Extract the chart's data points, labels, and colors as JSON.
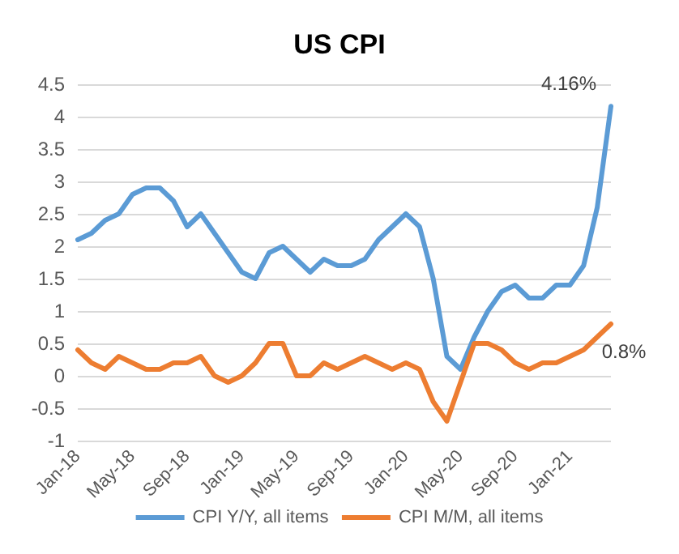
{
  "chart_data": {
    "type": "line",
    "title": "US CPI",
    "categories": [
      "Jan-18",
      null,
      null,
      null,
      "May-18",
      null,
      null,
      null,
      "Sep-18",
      null,
      null,
      null,
      "Jan-19",
      null,
      null,
      null,
      "May-19",
      null,
      null,
      null,
      "Sep-19",
      null,
      null,
      null,
      "Jan-20",
      null,
      null,
      null,
      "May-20",
      null,
      null,
      null,
      "Sep-20",
      null,
      null,
      null,
      "Jan-21",
      null,
      null,
      null
    ],
    "series": [
      {
        "name": "CPI Y/Y, all items",
        "color": "#5b9bd5",
        "values": [
          2.1,
          2.2,
          2.4,
          2.5,
          2.8,
          2.9,
          2.9,
          2.7,
          2.3,
          2.5,
          2.2,
          1.9,
          1.6,
          1.5,
          1.9,
          2.0,
          1.8,
          1.6,
          1.8,
          1.7,
          1.7,
          1.8,
          2.1,
          2.3,
          2.5,
          2.3,
          1.5,
          0.3,
          0.1,
          0.6,
          1.0,
          1.3,
          1.4,
          1.2,
          1.2,
          1.4,
          1.4,
          1.7,
          2.6,
          4.16
        ],
        "value_labels": [
          null,
          null,
          null,
          null,
          null,
          null,
          null,
          null,
          null,
          null,
          null,
          null,
          null,
          null,
          null,
          null,
          null,
          null,
          null,
          null,
          null,
          null,
          null,
          null,
          null,
          null,
          null,
          null,
          null,
          null,
          null,
          null,
          null,
          null,
          null,
          null,
          null,
          null,
          null,
          "4.16%"
        ]
      },
      {
        "name": "CPI M/M, all items",
        "color": "#ed7d31",
        "values": [
          0.4,
          0.2,
          0.1,
          0.3,
          0.2,
          0.1,
          0.1,
          0.2,
          0.2,
          0.3,
          0.0,
          -0.1,
          0.0,
          0.2,
          0.5,
          0.5,
          0.0,
          0.0,
          0.2,
          0.1,
          0.2,
          0.3,
          0.2,
          0.1,
          0.2,
          0.1,
          -0.4,
          -0.7,
          -0.1,
          0.5,
          0.5,
          0.4,
          0.2,
          0.1,
          0.2,
          0.2,
          0.3,
          0.4,
          0.6,
          0.8
        ],
        "value_labels": [
          null,
          null,
          null,
          null,
          null,
          null,
          null,
          null,
          null,
          null,
          null,
          null,
          null,
          null,
          null,
          null,
          null,
          null,
          null,
          null,
          null,
          null,
          null,
          null,
          null,
          null,
          null,
          null,
          null,
          null,
          null,
          null,
          null,
          null,
          null,
          null,
          null,
          null,
          null,
          "0.8%"
        ]
      }
    ],
    "ylim": [
      -1,
      4.5
    ],
    "yticks": [
      -1,
      -0.5,
      0,
      0.5,
      1,
      1.5,
      2,
      2.5,
      3,
      3.5,
      4,
      4.5
    ],
    "grid": "y",
    "legend": "bottom",
    "marker": "none",
    "line_style": "solid"
  }
}
